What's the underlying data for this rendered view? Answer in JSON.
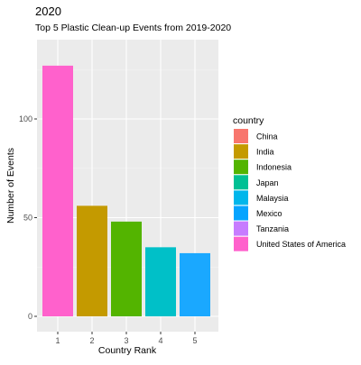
{
  "chart_data": {
    "type": "bar",
    "title": "2020",
    "subtitle": "Top 5 Plastic Clean-up Events from 2019-2020",
    "xlabel": "Country Rank",
    "ylabel": "Number of Events",
    "categories": [
      "1",
      "2",
      "3",
      "4",
      "5"
    ],
    "values": [
      127,
      56,
      48,
      35,
      32
    ],
    "bar_countries": [
      "United States of America",
      "India",
      "Indonesia",
      "Malaysia",
      "Mexico"
    ],
    "ylim": [
      0,
      136
    ],
    "yticks": [
      0,
      50,
      100
    ],
    "ytick_labels": [
      "0",
      "50",
      "100"
    ],
    "grid": true,
    "panel_background": "#ebebeb",
    "legend": {
      "title": "country",
      "position": "right",
      "entries": [
        {
          "label": "China",
          "color": "#F8766D"
        },
        {
          "label": "India",
          "color": "#C49A00"
        },
        {
          "label": "Indonesia",
          "color": "#53B400"
        },
        {
          "label": "Japan",
          "color": "#00C094"
        },
        {
          "label": "Malaysia",
          "color": "#00B6EB"
        },
        {
          "label": "Mexico",
          "color": "#06A4FF"
        },
        {
          "label": "Tanzania",
          "color": "#C77CFF"
        },
        {
          "label": "United States of America",
          "color": "#FF61CC"
        }
      ]
    },
    "bar_colors": [
      "#FF61CC",
      "#C49A00",
      "#53B400",
      "#00C0C8",
      "#1AA8FF"
    ]
  }
}
